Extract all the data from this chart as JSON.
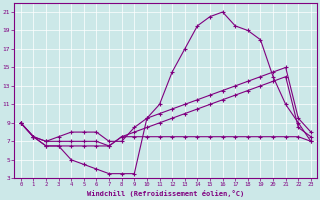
{
  "xlabel": "Windchill (Refroidissement éolien,°C)",
  "background_color": "#cce8e8",
  "line_color": "#800080",
  "xlim": [
    -0.5,
    23.5
  ],
  "ylim": [
    3,
    22
  ],
  "xticks": [
    0,
    1,
    2,
    3,
    4,
    5,
    6,
    7,
    8,
    9,
    10,
    11,
    12,
    13,
    14,
    15,
    16,
    17,
    18,
    19,
    20,
    21,
    22,
    23
  ],
  "yticks": [
    3,
    5,
    7,
    9,
    11,
    13,
    15,
    17,
    19,
    21
  ],
  "line1_x": [
    0,
    1,
    2,
    3,
    4,
    5,
    6,
    7,
    8,
    9,
    10,
    11,
    12,
    13,
    14,
    15,
    16,
    17,
    18,
    19,
    20,
    21,
    22,
    23
  ],
  "line1_y": [
    9.0,
    7.5,
    6.5,
    6.5,
    5.0,
    4.5,
    4.0,
    3.5,
    3.5,
    3.5,
    9.5,
    11.0,
    14.5,
    17.0,
    19.5,
    20.5,
    21.0,
    19.5,
    19.0,
    18.0,
    14.0,
    11.0,
    9.0,
    7.0
  ],
  "line2_x": [
    0,
    1,
    2,
    3,
    4,
    5,
    6,
    7,
    8,
    9,
    10,
    11,
    12,
    13,
    14,
    15,
    16,
    17,
    18,
    19,
    20,
    21,
    22,
    23
  ],
  "line2_y": [
    9.0,
    7.5,
    7.0,
    7.0,
    7.0,
    7.0,
    7.0,
    6.5,
    7.5,
    8.0,
    8.5,
    9.0,
    9.5,
    10.0,
    10.5,
    11.0,
    11.5,
    12.0,
    12.5,
    13.0,
    13.5,
    14.0,
    8.5,
    7.5
  ],
  "line3_x": [
    0,
    1,
    2,
    3,
    4,
    5,
    6,
    7,
    8,
    9,
    10,
    11,
    12,
    13,
    14,
    15,
    16,
    17,
    18,
    19,
    20,
    21,
    22,
    23
  ],
  "line3_y": [
    9.0,
    7.5,
    7.0,
    7.5,
    8.0,
    8.0,
    8.0,
    7.0,
    7.0,
    8.5,
    9.5,
    10.0,
    10.5,
    11.0,
    11.5,
    12.0,
    12.5,
    13.0,
    13.5,
    14.0,
    14.5,
    15.0,
    9.5,
    8.0
  ],
  "line4_x": [
    0,
    1,
    2,
    3,
    4,
    5,
    6,
    7,
    8,
    9,
    10,
    11,
    12,
    13,
    14,
    15,
    16,
    17,
    18,
    19,
    20,
    21,
    22,
    23
  ],
  "line4_y": [
    9.0,
    7.5,
    6.5,
    6.5,
    6.5,
    6.5,
    6.5,
    6.5,
    7.5,
    7.5,
    7.5,
    7.5,
    7.5,
    7.5,
    7.5,
    7.5,
    7.5,
    7.5,
    7.5,
    7.5,
    7.5,
    7.5,
    7.5,
    7.0
  ]
}
